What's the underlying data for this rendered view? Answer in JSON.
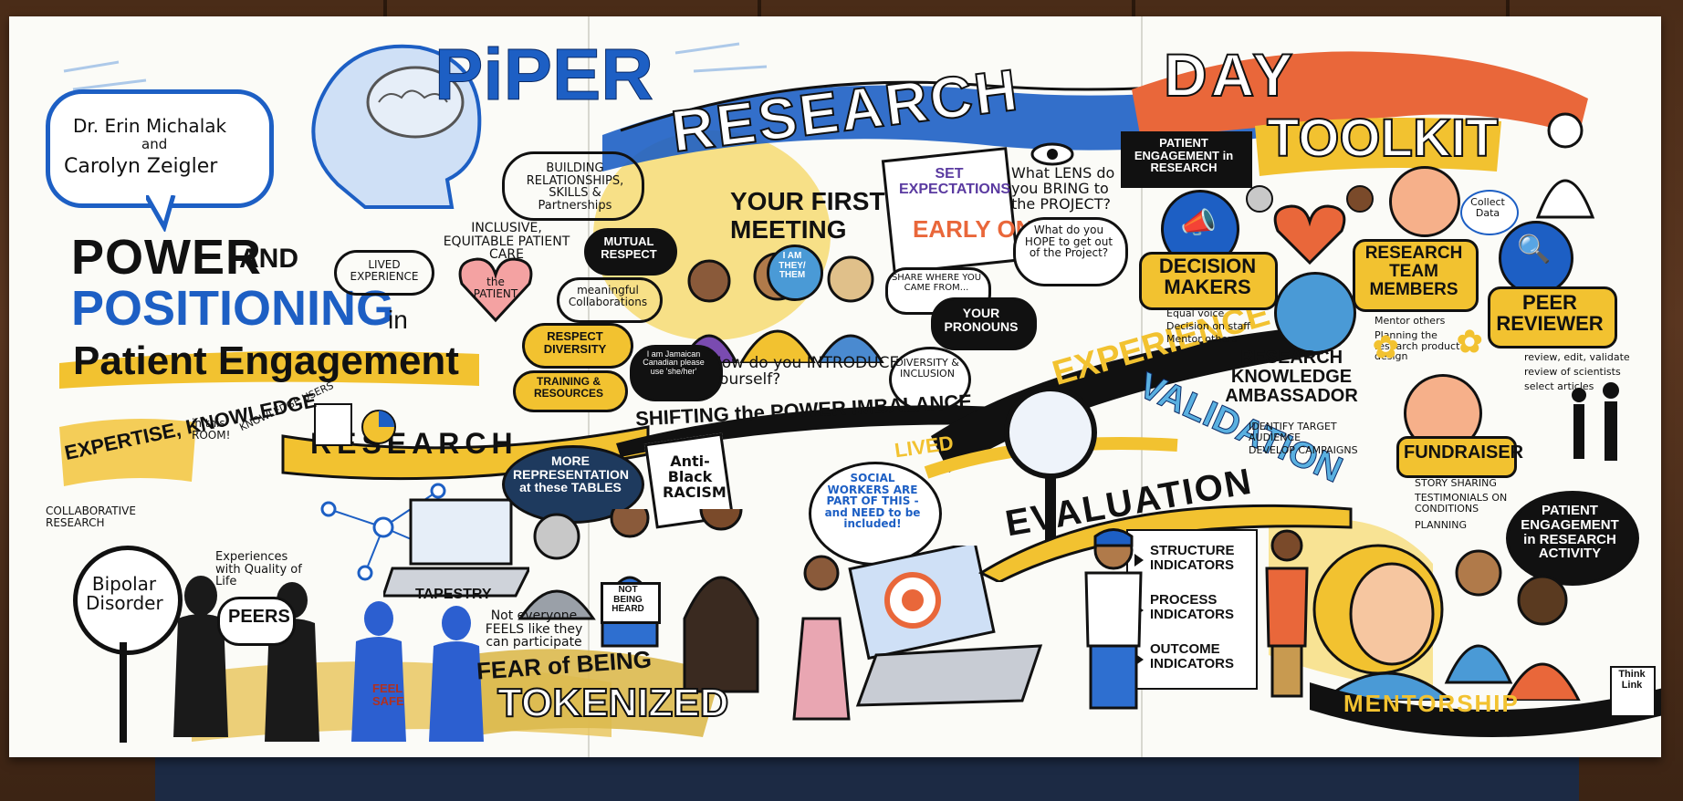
{
  "title": {
    "piper": "PiPER",
    "research": "RESEARCH",
    "day": "DAY"
  },
  "authors": {
    "line1": "Dr. Erin Michalak",
    "line2": "and",
    "line3": "Carolyn Zeigler"
  },
  "main_heading": {
    "line1": "POWER",
    "and": "AND",
    "line2": "POSITIONING",
    "in": "in",
    "line3": "Patient Engagement"
  },
  "left": {
    "building": "BUILDING RELATIONSHIPS, SKILLS & Partnerships",
    "inclusive": "INCLUSIVE, EQUITABLE PATIENT CARE",
    "patient_heart": "the PATIENT",
    "lived_experience": "LIVED EXPERIENCE",
    "mutual_respect": "MUTUAL RESPECT",
    "meaningful": "meaningful Collaborations",
    "respect_diversity": "RESPECT DIVERSITY",
    "training": "TRAINING & RESOURCES",
    "knowledge_users": "KNOWLEDGE USERS",
    "expertise": "EXPERTISE, KNOWLEDGE",
    "in_this_room": "in this ROOM!",
    "research_ribbon": "RESEARCH",
    "collaborative": "COLLABORATIVE RESEARCH",
    "experiences": "Experiences with Quality of Life",
    "bipolar": "Bipolar Disorder",
    "peers": "PEERS",
    "feel_safe": "FEEL SAFE"
  },
  "center": {
    "your_first_meeting": "YOUR FIRST MEETING",
    "i_am": "I AM THEY/ THEM",
    "set_expectations": "SET EXPECTATIONS",
    "early_on": "EARLY ON",
    "what_lens": "What LENS do you BRING to the PROJECT?",
    "what_hope": "What do you HOPE to get out of the Project?",
    "share_where": "SHARE WHERE YOU CAME FROM...",
    "your_pronouns": "YOUR PRONOUNS",
    "introduce": "How do you INTRODUCE yourself?",
    "jamaican": "I am Jamaican Canadian please use 'she/her'",
    "diversity": "DIVERSITY & INCLUSION",
    "shifting": "SHIFTING the POWER IMBALANCE",
    "more_rep": "MORE REPRESENTATION at these TABLES",
    "anti_black": "Anti-Black RACISM",
    "social_workers": "SOCIAL WORKERS ARE PART OF THIS - and NEED to be included!",
    "tapestry": "TAPESTRY",
    "not_everyone": "Not everyone FEELS like they can participate",
    "not_heard": "NOT BEING HEARD",
    "fear": "FEAR of BEING",
    "tokenized": "TOKENIZED"
  },
  "right": {
    "patient_engagement": "PATIENT ENGAGEMENT in RESEARCH",
    "toolkit": "TOOLKIT",
    "experience": "EXPERIENCE",
    "lived": "LIVED",
    "validation": "VALIDATION",
    "evaluation": "EVALUATION",
    "decision_makers": "DECISION MAKERS",
    "decision_items": [
      "Equal voice",
      "Decision on staff",
      "Mentor others"
    ],
    "research_team": "RESEARCH TEAM MEMBERS",
    "team_items": [
      "Mentor others",
      "Planning the research product design"
    ],
    "collect_data": "Collect Data",
    "peer_reviewer": "PEER REVIEWER",
    "peer_items": [
      "review, edit, validate",
      "review of scientists",
      "select articles"
    ],
    "ambassador": "RESEARCH KNOWLEDGE AMBASSADOR",
    "ambassador_items": [
      "IDENTIFY TARGET AUDIENCE",
      "DEVELOP CAMPAIGNS"
    ],
    "fundraiser": "FUNDRAISER",
    "fundraiser_items": [
      "STORY SHARING",
      "TESTIMONIALS ON CONDITIONS",
      "PLANNING"
    ],
    "structure": "STRUCTURE INDICATORS",
    "process": "PROCESS INDICATORS",
    "outcome": "OUTCOME INDICATORS",
    "pe_activity": "PATIENT ENGAGEMENT in RESEARCH ACTIVITY",
    "mentorship": "MENTORSHIP",
    "logo": "Think Link"
  },
  "colors": {
    "blue": "#1d5fc4",
    "yellow": "#f2c230",
    "orange": "#e9673a",
    "black": "#111111"
  }
}
